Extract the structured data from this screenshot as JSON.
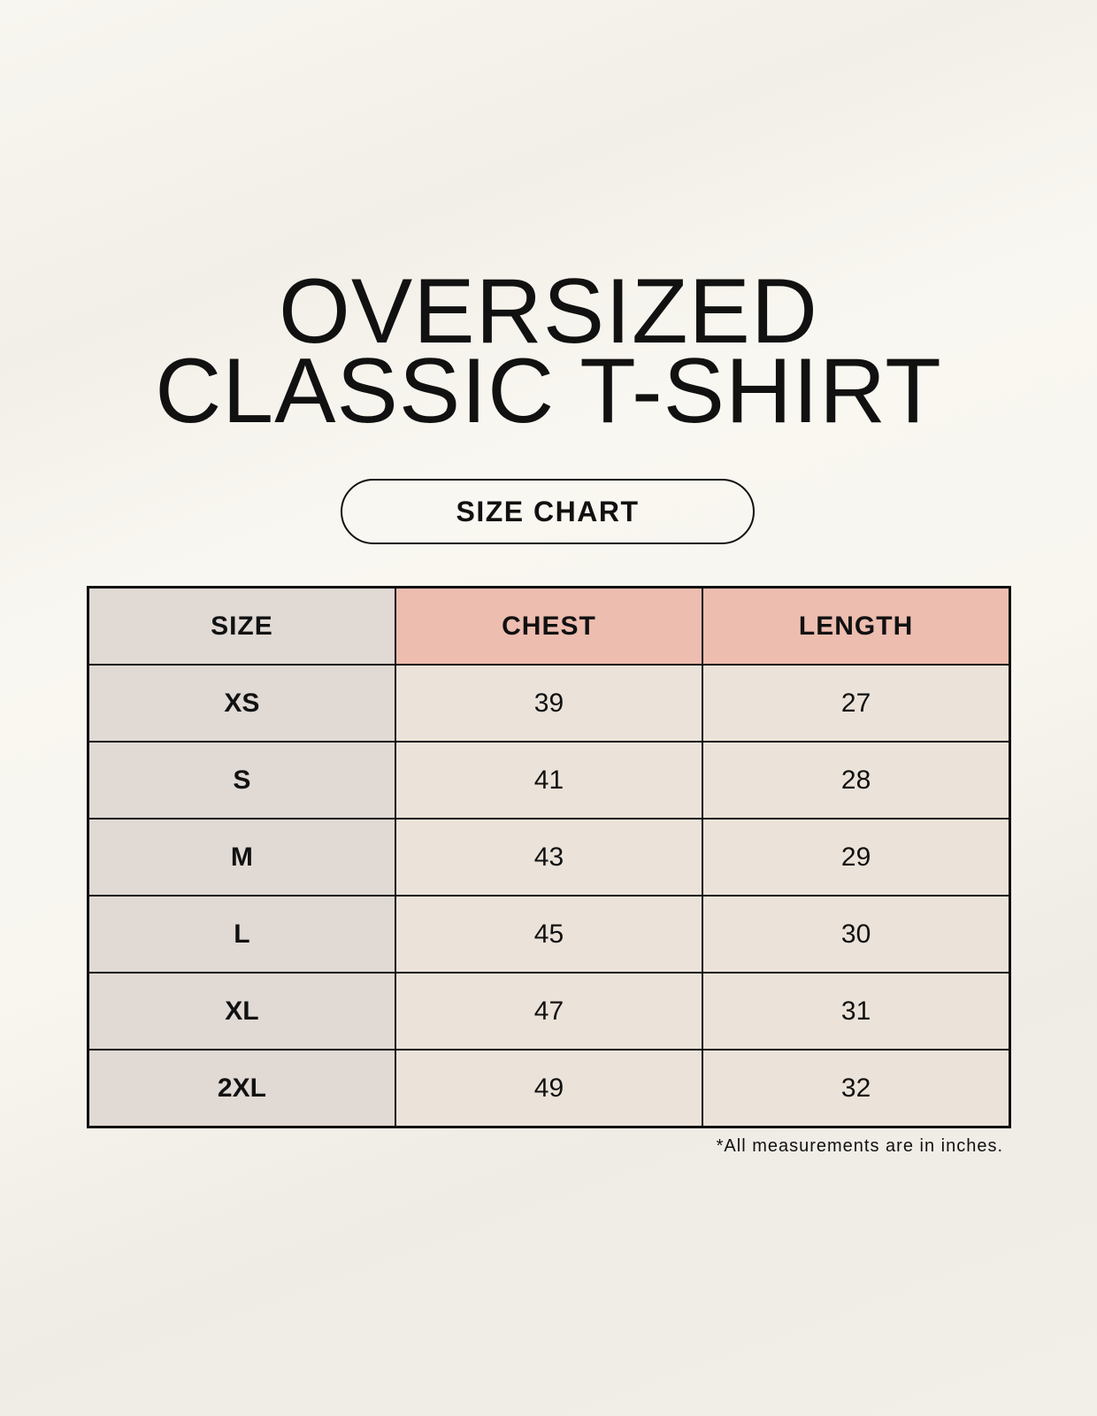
{
  "title": {
    "line1": "OVERSIZED",
    "line2": "CLASSIC T-SHIRT"
  },
  "badge": "SIZE CHART",
  "table": {
    "headers": [
      "SIZE",
      "CHEST",
      "LENGTH"
    ],
    "rows": [
      [
        "XS",
        "39",
        "27"
      ],
      [
        "S",
        "41",
        "28"
      ],
      [
        "M",
        "43",
        "29"
      ],
      [
        "L",
        "45",
        "30"
      ],
      [
        "XL",
        "47",
        "31"
      ],
      [
        "2XL",
        "49",
        "32"
      ]
    ]
  },
  "colors": {
    "size_column": "#e0d9d4",
    "header_accent": "#edbdb0",
    "cell": "#ebe3d9"
  },
  "footnote": "*All measurements are in inches."
}
